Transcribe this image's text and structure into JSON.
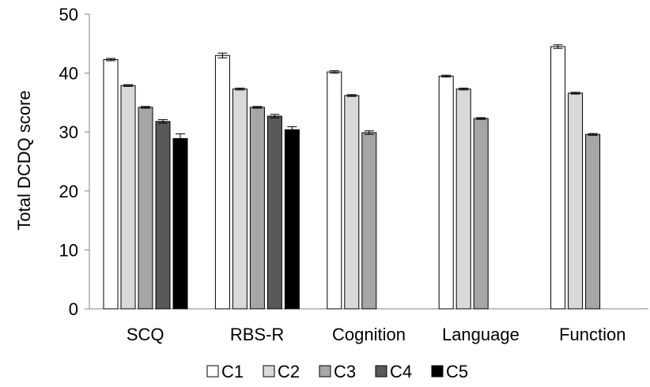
{
  "chart_data": {
    "type": "bar",
    "title": "",
    "xlabel": "",
    "ylabel": "Total DCDQ score",
    "ylim": [
      0,
      50
    ],
    "yticks": [
      0,
      10,
      20,
      30,
      40,
      50
    ],
    "grid": false,
    "legend_position": "bottom",
    "error_bars": true,
    "categories": [
      "SCQ",
      "RBS-R",
      "Cognition",
      "Language",
      "Function"
    ],
    "series": [
      {
        "name": "C1",
        "color": "#ffffff",
        "values": [
          42.3,
          43.0,
          40.2,
          39.5,
          44.5
        ],
        "errors": [
          0.2,
          0.4,
          0.2,
          0.15,
          0.3
        ]
      },
      {
        "name": "C2",
        "color": "#d9d9d9",
        "values": [
          37.9,
          37.3,
          36.2,
          37.3,
          36.6
        ],
        "errors": [
          0.15,
          0.15,
          0.15,
          0.15,
          0.15
        ]
      },
      {
        "name": "C3",
        "color": "#a6a6a6",
        "values": [
          34.2,
          34.2,
          29.9,
          32.3,
          29.6
        ],
        "errors": [
          0.15,
          0.15,
          0.3,
          0.15,
          0.15
        ]
      },
      {
        "name": "C4",
        "color": "#595959",
        "values": [
          31.8,
          32.7,
          null,
          null,
          null
        ],
        "errors": [
          0.3,
          0.3,
          null,
          null,
          null
        ]
      },
      {
        "name": "C5",
        "color": "#000000",
        "values": [
          28.9,
          30.4,
          null,
          null,
          null
        ],
        "errors": [
          0.8,
          0.5,
          null,
          null,
          null
        ]
      }
    ]
  }
}
